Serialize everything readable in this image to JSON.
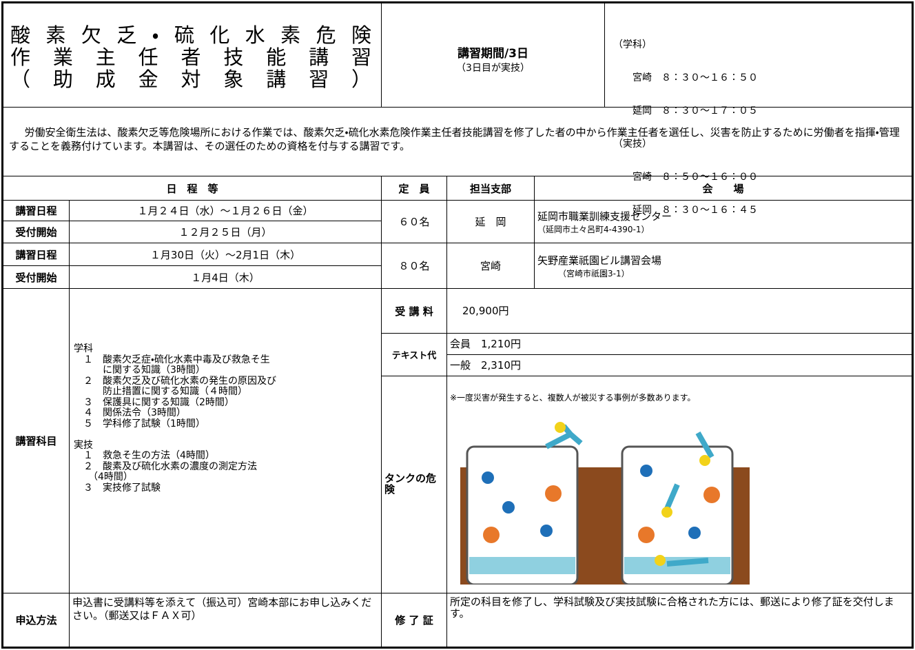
{
  "header": {
    "title_lines": [
      "酸素欠乏・硫化水素危険",
      "作業主任者技能講習",
      "（助成金対象講習）"
    ],
    "period": "講習期間/3日",
    "period_note": "（3日目が実技）",
    "times": [
      "（学科）",
      "　　宮崎　８：３０～１６：５０",
      "　　延岡　８：３０～１７：０５",
      "（実技）",
      "　　宮崎　８：５０～１６：００",
      "　　延岡　８：３０～１６：４５"
    ]
  },
  "description": "労働安全衛生法は、酸素欠乏等危険場所における作業では、酸素欠乏・硫化水素危険作業主任者技能講習を修了した者の中から作業主任者を選任し、災害を防止するために労働者を指揮・管理することを義務付けています。本講習は、その選任のための資格を付与する講習です。",
  "table": {
    "headers": [
      "日　程　等",
      "定　員",
      "担当支部",
      "会　　場"
    ],
    "sessions": [
      {
        "rows": [
          [
            "講習日程",
            "１月２４日（水）～１月２６日（金）"
          ],
          [
            "受付開始",
            "１２月２５日（月）"
          ]
        ],
        "capacity": "６０名",
        "branch": "延　岡",
        "venue": "延岡市職業訓練支援センター",
        "address": "（延岡市土々呂町4-4390-1）"
      },
      {
        "rows": [
          [
            "講習日程",
            "１月30日（火）～2月1日（木）"
          ],
          [
            "受付開始",
            "１月4日（木）"
          ]
        ],
        "capacity": "８０名",
        "branch": "宮崎",
        "venue": "矢野産業祇園ビル講習会場",
        "address": "（宮崎市祇園3-1）"
      }
    ]
  },
  "subjects": {
    "label": "講習科目",
    "lines": [
      "学科",
      "　１　酸素欠乏症・硫化水素中毒及び救急そ生",
      "　　　に関する知識（3時間）",
      "　２　酸素欠乏及び硫化水素の発生の原因及び",
      "　　　防止措置に関する知識（４時間）",
      "　３　保護具に関する知識（2時間）",
      "　４　関係法令（3時間）",
      "　５　学科修了試験（1時間）",
      "",
      "実技",
      "　１　救急そ生の方法（4時間）",
      "　２　酸素及び硫化水素の濃度の測定方法",
      "　　（4時間）",
      "　３　実技修了試験"
    ]
  },
  "fee": {
    "label": "受 講 料",
    "value": "20,900円"
  },
  "text_fee": {
    "label": "テキスト代",
    "rows": [
      "会員　1,210円",
      "一般　2,310円"
    ]
  },
  "danger": {
    "label": "タンクの危　　険",
    "note": "※一度災害が発生すると、複数人が被災する事例が多数あります。"
  },
  "application": {
    "label": "申込方法",
    "text": "申込書に受講料等を添えて（振込可）宮崎本部にお申し込みください。（郵送又はＦＡＸ可）"
  },
  "certificate": {
    "label": "修 了 証",
    "text": "所定の科目を修了し、学科試験及び実技試験に合格された方には、郵送により修了証を交付します。"
  }
}
